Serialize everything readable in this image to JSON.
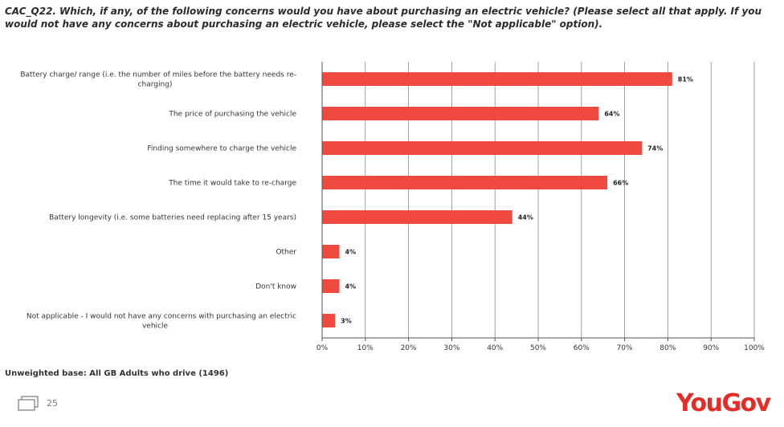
{
  "question": {
    "code": "CAC_Q22.",
    "text": "Which, if any, of the following concerns would you have about purchasing an electric vehicle? (Please select all that apply. If you would not have any concerns about purchasing an electric vehicle, please select the \"Not applicable\" option)."
  },
  "chart_data": {
    "type": "bar",
    "orientation": "horizontal",
    "categories": [
      "Battery charge/ range (i.e. the number of miles before the battery needs re-charging)",
      "The price of purchasing the vehicle",
      "Finding somewhere to charge the vehicle",
      "The time it would take to re-charge",
      "Battery longevity (i.e. some batteries need replacing after 15 years)",
      "Other",
      "Don't know",
      "Not applicable - I would not have any concerns with purchasing an electric vehicle"
    ],
    "category_lines": [
      [
        "Battery charge/ range (i.e. the number of miles before the battery needs re-",
        "charging)"
      ],
      [
        "The price of purchasing the vehicle"
      ],
      [
        "Finding somewhere to charge the vehicle"
      ],
      [
        "The time it would take to re-charge"
      ],
      [
        "Battery longevity (i.e. some batteries need replacing after 15 years)"
      ],
      [
        "Other"
      ],
      [
        "Don't know"
      ],
      [
        "Not applicable - I would not have any concerns with purchasing an electric",
        "vehicle"
      ]
    ],
    "values": [
      81,
      64,
      74,
      66,
      44,
      4,
      4,
      3
    ],
    "value_labels": [
      "81%",
      "64%",
      "74%",
      "66%",
      "44%",
      "4%",
      "4%",
      "3%"
    ],
    "xlim": [
      0,
      100
    ],
    "ticks": [
      0,
      10,
      20,
      30,
      40,
      50,
      60,
      70,
      80,
      90,
      100
    ],
    "tick_labels": [
      "0%",
      "10%",
      "20%",
      "30%",
      "40%",
      "50%",
      "60%",
      "70%",
      "80%",
      "90%",
      "100%"
    ],
    "grid": true,
    "bar_color": "#f04a40"
  },
  "footer": {
    "base_note": "Unweighted base: All GB Adults who drive (1496)",
    "page_number": "25",
    "logo": "YouGov",
    "logo_color": "#e52d27"
  }
}
